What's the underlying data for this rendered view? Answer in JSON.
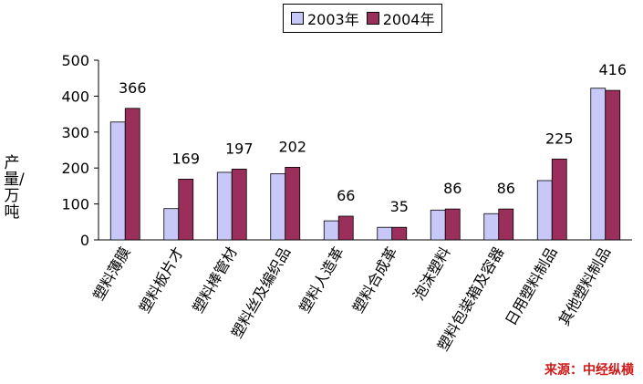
{
  "chart_data": {
    "type": "bar",
    "title": "",
    "xlabel": "",
    "ylabel": "产量/万吨",
    "ylim": [
      0,
      500
    ],
    "yticks": [
      "0",
      "100",
      "200",
      "300",
      "400",
      "500"
    ],
    "categories": [
      "塑料薄膜",
      "塑料板片才",
      "塑料棒管材",
      "塑料丝及编织品",
      "塑料人造革",
      "塑料合成革",
      "泡沫塑料",
      "塑料包装箱及容器",
      "日用塑料制品",
      "其他塑料制品"
    ],
    "series": [
      {
        "name": "2003年",
        "values": [
          328,
          87,
          188,
          184,
          53,
          35,
          83,
          73,
          165,
          422
        ],
        "color": "#c8c8f8"
      },
      {
        "name": "2004年",
        "values": [
          366,
          169,
          197,
          202,
          66,
          35,
          86,
          86,
          225,
          416
        ],
        "color": "#9b2f5c"
      }
    ],
    "data_labels": [
      "366",
      "169",
      "197",
      "202",
      "66",
      "35",
      "86",
      "86",
      "225",
      "416"
    ],
    "legend_position": "top"
  },
  "source": "来源：中经纵横"
}
